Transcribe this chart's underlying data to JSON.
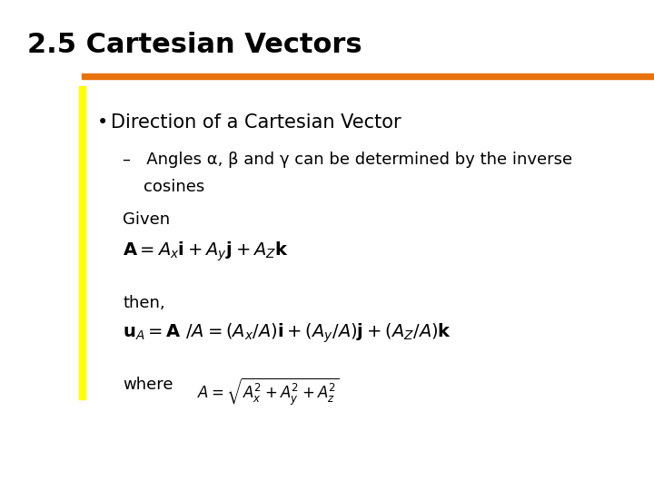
{
  "title": "2.5 Cartesian Vectors",
  "title_fontsize": 22,
  "title_color": "#000000",
  "bg_color": "#ffffff",
  "orange_bar_color": "#E8720C",
  "yellow_bar_color": "#FFFF00",
  "bullet_text": "Direction of a Cartesian Vector",
  "bullet_fontsize": 15,
  "dash_line1": "–   Angles α, β and γ can be determined by the inverse",
  "dash_line2": "cosines",
  "dash_fontsize": 13,
  "given_text": "Given",
  "given_fontsize": 13,
  "formula1_fontsize": 14,
  "then_text": "then,",
  "then_fontsize": 13,
  "formula2_fontsize": 14,
  "where_text": "where",
  "where_fontsize": 13,
  "formula3_fontsize": 12
}
